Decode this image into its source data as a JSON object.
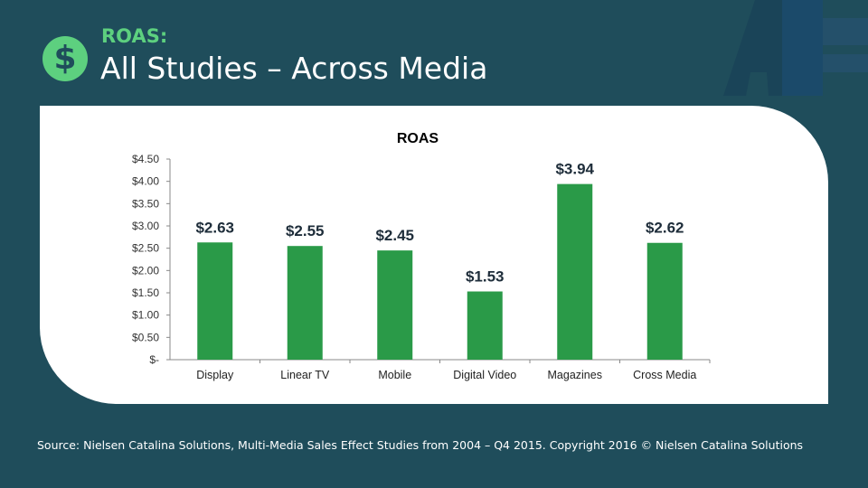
{
  "header": {
    "kicker": "ROAS:",
    "title": "All Studies – Across Media",
    "icon": "dollar-icon",
    "logo_text": "ARF"
  },
  "colors": {
    "background": "#1f4d5b",
    "accent": "#5dd07f",
    "bar": "#2a9a48"
  },
  "chart_data": {
    "type": "bar",
    "title": "ROAS",
    "categories": [
      "Display",
      "Linear TV",
      "Mobile",
      "Digital Video",
      "Magazines",
      "Cross Media"
    ],
    "values": [
      2.63,
      2.55,
      2.45,
      1.53,
      3.94,
      2.62
    ],
    "data_labels": [
      "$2.63",
      "$2.55",
      "$2.45",
      "$1.53",
      "$3.94",
      "$2.62"
    ],
    "yticks": [
      "$-",
      "$0.50",
      "$1.00",
      "$1.50",
      "$2.00",
      "$2.50",
      "$3.00",
      "$3.50",
      "$4.00",
      "$4.50"
    ],
    "ylim": [
      0,
      4.5
    ],
    "grid": false,
    "legend": "none"
  },
  "footer": {
    "source": "Source: Nielsen Catalina Solutions, Multi-Media Sales Effect Studies from 2004 – Q4 2015. Copyright 2016 © Nielsen Catalina Solutions"
  }
}
